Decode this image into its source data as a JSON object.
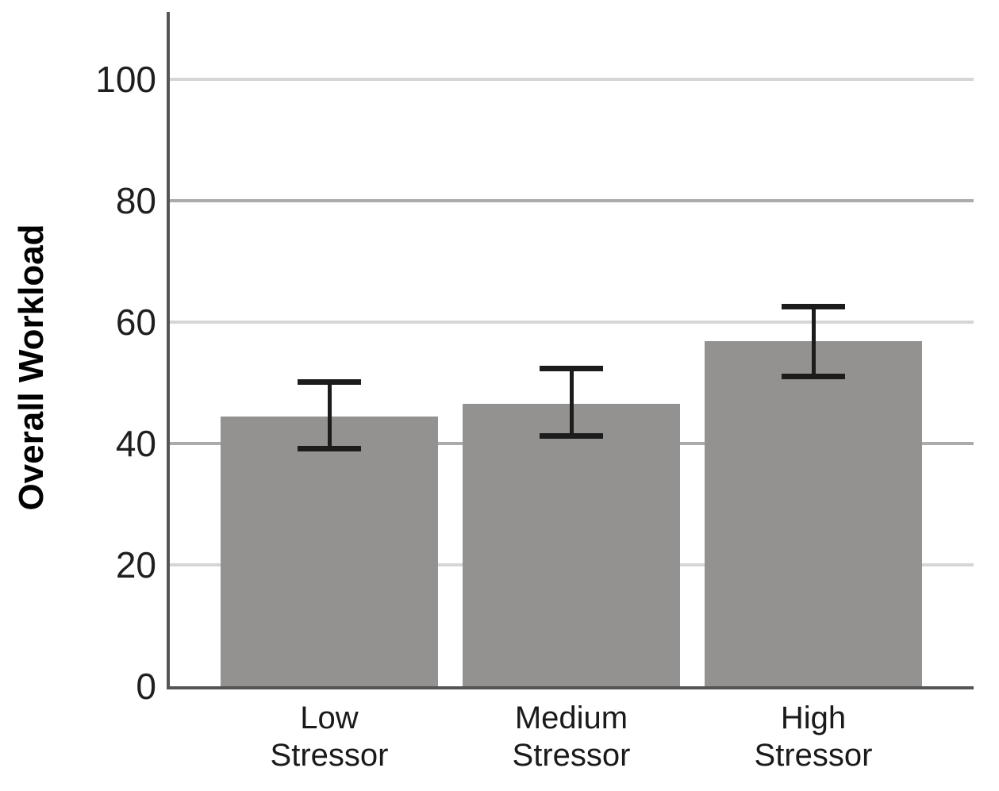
{
  "chart_data": {
    "type": "bar",
    "title": "",
    "xlabel": "",
    "ylabel": "Overall Workload",
    "categories": [
      "Low Stressor",
      "Medium Stressor",
      "High Stressor"
    ],
    "values": [
      44.4,
      46.6,
      56.9
    ],
    "error_bars": {
      "lower": [
        39.4,
        41.4,
        51.3
      ],
      "upper": [
        49.9,
        52.1,
        62.4
      ]
    },
    "yticks": [
      0,
      20,
      40,
      60,
      80,
      100
    ],
    "ylim": [
      0,
      111
    ],
    "grid": "horizontal-only",
    "legend": "none",
    "colors": {
      "bar_fill": "#949290",
      "error_bar": "#1c1c1c",
      "grid_light": "#d6d6d6",
      "grid_medium": "#ababab",
      "axis_line": "#555555",
      "tick_text": "#1f1f1f"
    }
  }
}
